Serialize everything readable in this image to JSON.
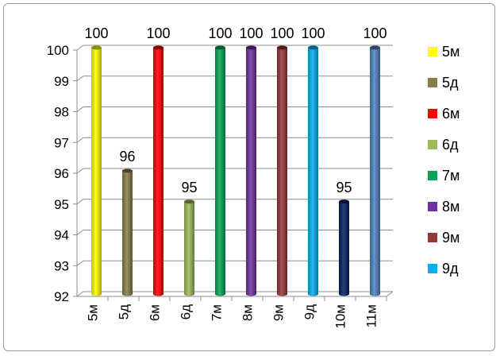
{
  "chart_data": {
    "type": "bar",
    "categories": [
      "5м",
      "5д",
      "6м",
      "6д",
      "7м",
      "8м",
      "9м",
      "9д",
      "10м",
      "11м"
    ],
    "values": [
      100,
      96,
      100,
      95,
      100,
      100,
      100,
      100,
      95,
      100
    ],
    "data_labels": [
      "100",
      "96",
      "100",
      "95",
      "100",
      "100",
      "100",
      "100",
      "95",
      "100"
    ],
    "colors": [
      "#ffff00",
      "#8b7d47",
      "#ff0000",
      "#9bbb59",
      "#00a651",
      "#7030a0",
      "#953735",
      "#00b0f0",
      "#002060",
      "#4f81bd"
    ],
    "ylim": [
      92,
      100
    ],
    "yticks": [
      "92",
      "93",
      "94",
      "95",
      "96",
      "97",
      "98",
      "99",
      "100"
    ],
    "grid": true,
    "legend_position": "right",
    "legend": [
      {
        "label": "5м",
        "color": "#ffff00"
      },
      {
        "label": "5д",
        "color": "#8b7d47"
      },
      {
        "label": "6м",
        "color": "#ff0000"
      },
      {
        "label": "6д",
        "color": "#9bbb59"
      },
      {
        "label": "7м",
        "color": "#00a651"
      },
      {
        "label": "8м",
        "color": "#7030a0"
      },
      {
        "label": "9м",
        "color": "#953735"
      },
      {
        "label": "9д",
        "color": "#00b0f0"
      }
    ]
  }
}
